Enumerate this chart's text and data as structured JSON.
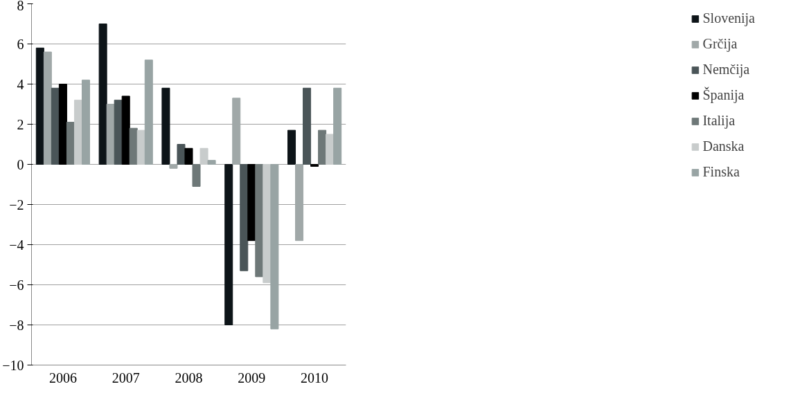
{
  "chart_data": {
    "type": "bar",
    "categories": [
      "2006",
      "2007",
      "2008",
      "2009",
      "2010"
    ],
    "series": [
      {
        "name": "Slovenija",
        "color": "#0d1418",
        "values": [
          5.8,
          7.0,
          3.8,
          -8.0,
          1.7
        ]
      },
      {
        "name": "Grčija",
        "color": "#a0a8a8",
        "values": [
          5.6,
          3.0,
          -0.2,
          3.3,
          -3.8
        ]
      },
      {
        "name": "Nemčija",
        "color": "#4a5558",
        "values": [
          3.8,
          3.2,
          1.0,
          -5.3,
          3.8
        ]
      },
      {
        "name": "Španija",
        "color": "#000000",
        "values": [
          4.0,
          3.4,
          0.8,
          -3.8,
          -0.1
        ]
      },
      {
        "name": "Italija",
        "color": "#6e7878",
        "values": [
          2.1,
          1.8,
          -1.1,
          -5.6,
          1.7
        ]
      },
      {
        "name": "Danska",
        "color": "#c8cccc",
        "values": [
          3.2,
          1.7,
          0.8,
          -5.9,
          1.5
        ]
      },
      {
        "name": "Finska",
        "color": "#98a4a4",
        "values": [
          4.2,
          5.2,
          0.2,
          -8.2,
          3.8
        ]
      }
    ],
    "ylim": [
      -10,
      8
    ],
    "yticks": [
      -10,
      -8,
      -6,
      -4,
      -2,
      0,
      2,
      4,
      6,
      8
    ],
    "grid": "y",
    "legend": "right"
  }
}
